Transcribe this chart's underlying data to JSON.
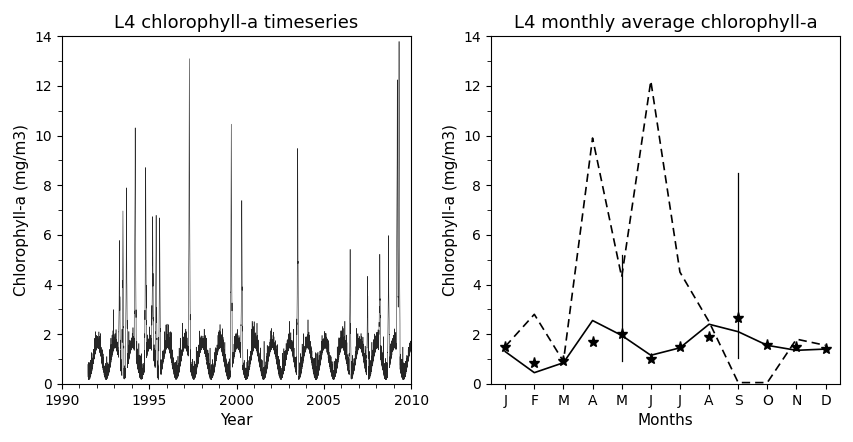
{
  "left_title": "L4 chlorophyll-a timeseries",
  "right_title": "L4 monthly average chlorophyll-a",
  "left_xlabel": "Year",
  "right_xlabel": "Months",
  "ylabel": "Chlorophyll-a (mg/m3)",
  "left_xlim": [
    1990,
    2010
  ],
  "left_ylim": [
    0,
    14
  ],
  "right_ylim": [
    0,
    14
  ],
  "month_labels": [
    "J",
    "F",
    "M",
    "A",
    "M",
    "J",
    "J",
    "A",
    "S",
    "O",
    "N",
    "D"
  ],
  "mean_line": [
    1.3,
    0.45,
    0.85,
    2.55,
    1.95,
    1.15,
    1.45,
    2.4,
    2.1,
    1.55,
    1.35,
    1.4
  ],
  "star_values": [
    1.5,
    0.85,
    0.9,
    1.7,
    2.0,
    1.0,
    1.5,
    1.9,
    2.65,
    1.55,
    1.5,
    1.4
  ],
  "error_bottom": [
    1.5,
    0.85,
    0.9,
    1.7,
    0.9,
    0.85,
    1.5,
    1.9,
    1.05,
    1.55,
    1.5,
    1.4
  ],
  "error_top": [
    1.5,
    0.85,
    0.9,
    1.7,
    5.2,
    0.85,
    1.5,
    1.9,
    8.5,
    1.55,
    1.5,
    1.4
  ],
  "dashed_line": [
    1.5,
    2.8,
    0.9,
    9.9,
    4.3,
    12.2,
    4.5,
    2.5,
    0.05,
    0.05,
    1.8,
    1.55
  ],
  "background_color": "#ffffff",
  "line_color": "#000000",
  "title_fontsize": 13,
  "label_fontsize": 11,
  "tick_fontsize": 10
}
